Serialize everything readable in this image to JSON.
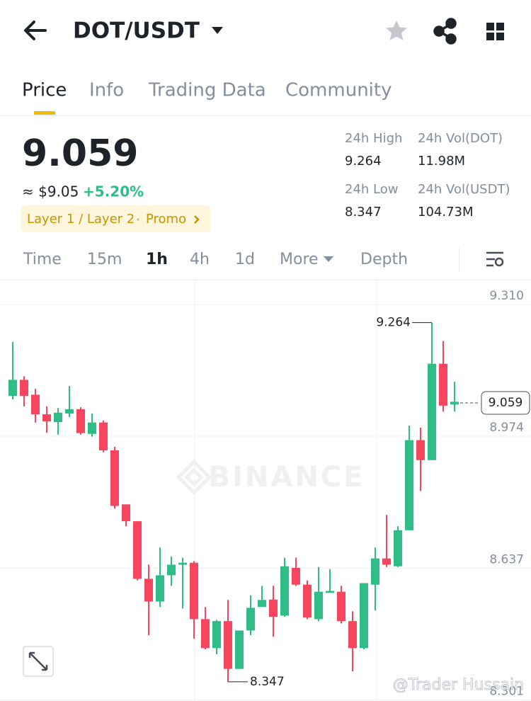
{
  "header": {
    "pair": "DOT/USDT"
  },
  "tabs": [
    "Price",
    "Info",
    "Trading Data",
    "Community"
  ],
  "price": {
    "last": "9.059",
    "approx": "≈ $9.05",
    "change": "+5.20%",
    "tag": "Layer 1 / Layer 2",
    "promo": "Promo"
  },
  "stats": [
    {
      "label": "24h High",
      "value": "9.264"
    },
    {
      "label": "24h Vol(DOT)",
      "value": "11.98M"
    },
    {
      "label": "24h Low",
      "value": "8.347"
    },
    {
      "label": "24h Vol(USDT)",
      "value": "104.73M"
    }
  ],
  "intervals": [
    "Time",
    "15m",
    "1h",
    "4h",
    "1d",
    "More",
    "Depth"
  ],
  "chart_data": {
    "type": "candlestick",
    "open": [
      9.077,
      9.118,
      9.08,
      9.03,
      9.01,
      9.032,
      9.043,
      8.98,
      9.009,
      8.938,
      8.8,
      8.757,
      8.61,
      8.552,
      8.619,
      8.646,
      8.651,
      8.507,
      8.433,
      8.502,
      8.38,
      8.478,
      8.538,
      8.557,
      8.516,
      8.638,
      8.595,
      8.507,
      8.574,
      8.577,
      8.502,
      8.433,
      8.595,
      8.662,
      8.642,
      8.734,
      8.964,
      8.913,
      9.159,
      9.055
    ],
    "high": [
      9.215,
      9.127,
      9.095,
      9.05,
      9.046,
      9.102,
      9.048,
      9.032,
      9.014,
      8.947,
      8.8,
      8.757,
      8.646,
      8.69,
      8.667,
      8.664,
      8.655,
      8.538,
      8.505,
      8.556,
      8.478,
      8.568,
      8.592,
      8.592,
      8.664,
      8.664,
      8.606,
      8.64,
      8.635,
      8.592,
      8.527,
      8.599,
      8.69,
      8.773,
      8.744,
      9.001,
      8.996,
      9.264,
      9.217,
      9.113
    ],
    "low": [
      9.068,
      9.05,
      9.009,
      8.983,
      8.978,
      9.023,
      8.978,
      8.973,
      8.933,
      8.789,
      8.744,
      8.606,
      8.466,
      8.538,
      8.592,
      8.534,
      8.457,
      8.43,
      8.417,
      8.347,
      8.38,
      8.466,
      8.538,
      8.462,
      8.513,
      8.592,
      8.507,
      8.502,
      8.574,
      8.496,
      8.374,
      8.43,
      8.529,
      8.64,
      8.64,
      8.734,
      8.834,
      8.913,
      9.037,
      9.037
    ],
    "close": [
      9.118,
      9.077,
      9.03,
      9.012,
      9.034,
      9.043,
      8.982,
      9.009,
      8.938,
      8.796,
      8.757,
      8.61,
      8.552,
      8.619,
      8.646,
      8.651,
      8.507,
      8.433,
      8.502,
      8.38,
      8.478,
      8.536,
      8.556,
      8.513,
      8.642,
      8.595,
      8.511,
      8.577,
      8.579,
      8.502,
      8.433,
      8.599,
      8.662,
      8.646,
      8.734,
      8.964,
      8.913,
      9.159,
      9.052,
      9.062
    ],
    "ylim": [
      8.298,
      9.37
    ],
    "yticks": [
      {
        "value": 9.31,
        "label": "9.310"
      },
      8.974,
      8.637,
      8.301
    ],
    "colors": {
      "up": "#2ebd85",
      "down": "#f6465d"
    },
    "last_price": 9.059,
    "watermark": "BINANCE",
    "credit": "@Trader Hussain"
  }
}
